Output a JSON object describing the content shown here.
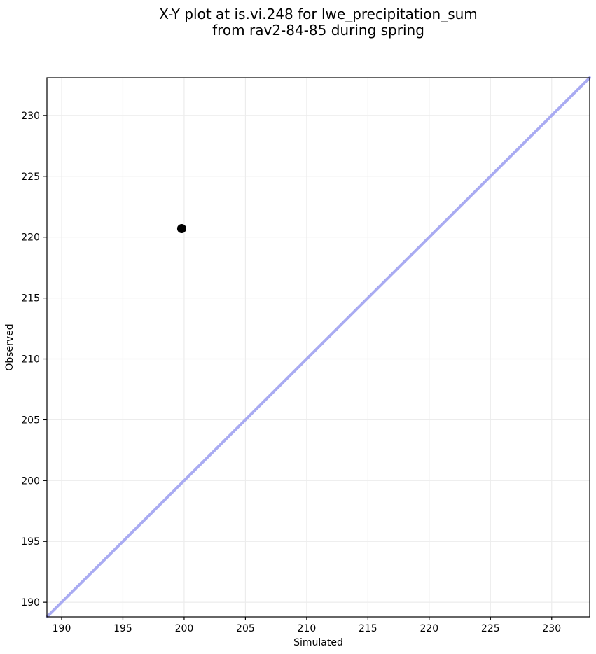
{
  "figure": {
    "title_line1": "X-Y plot at is.vi.248 for lwe_precipitation_sum",
    "title_line2": "from rav2-84-85 during spring"
  },
  "chart_data": {
    "type": "scatter",
    "title": "X-Y plot at is.vi.248 for lwe_precipitation_sum\nfrom rav2-84-85 during spring",
    "xlabel": "Simulated",
    "ylabel": "Observed",
    "xlim": [
      188.8,
      233.1
    ],
    "ylim": [
      188.8,
      233.1
    ],
    "xticks": [
      190,
      195,
      200,
      205,
      210,
      215,
      220,
      225,
      230
    ],
    "yticks": [
      190,
      195,
      200,
      205,
      210,
      215,
      220,
      225,
      230
    ],
    "grid": true,
    "legend": false,
    "points": [
      {
        "x": 199.8,
        "y": 220.7
      }
    ],
    "identity_line": {
      "x_start": 188.8,
      "y_start": 188.8,
      "x_end": 233.1,
      "y_end": 233.1,
      "color": "#a9abf2",
      "width": 4
    },
    "colors": {
      "point": "#000000",
      "grid": "#ececec",
      "spine": "#000000",
      "text": "#000000"
    },
    "point_radius": 6.5
  }
}
